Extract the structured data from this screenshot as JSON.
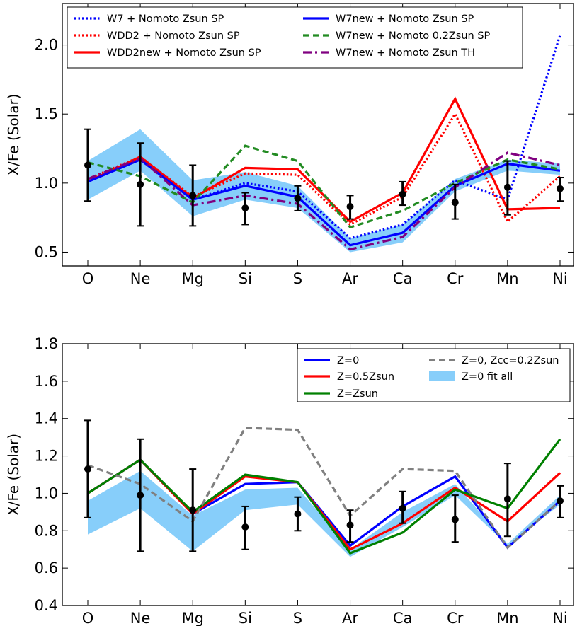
{
  "chart_data": [
    {
      "type": "line",
      "categories": [
        "O",
        "Ne",
        "Mg",
        "Si",
        "S",
        "Ar",
        "Ca",
        "Cr",
        "Mn",
        "Ni"
      ],
      "ylabel": "X/Fe (Solar)",
      "ylim": [
        0.4,
        2.3
      ],
      "yticks": [
        "0.5",
        "1.0",
        "1.5",
        "2.0"
      ],
      "grid": false,
      "legend_position": "top",
      "series": [
        {
          "name": "W7 + Nomoto Zsun SP",
          "style": "dotted",
          "color": "#0000ff",
          "values": [
            1.02,
            1.17,
            0.88,
            1.0,
            0.94,
            0.6,
            0.7,
            1.02,
            0.88,
            2.07
          ]
        },
        {
          "name": "WDD2 + Nomoto Zsun SP",
          "style": "dotted",
          "color": "#ff0000",
          "values": [
            1.03,
            1.19,
            0.9,
            1.07,
            1.06,
            0.7,
            0.9,
            1.5,
            0.72,
            1.05
          ]
        },
        {
          "name": "WDD2new + Nomoto Zsun SP",
          "style": "solid",
          "color": "#ff0000",
          "values": [
            1.01,
            1.19,
            0.89,
            1.11,
            1.1,
            0.72,
            0.93,
            1.61,
            0.81,
            0.82
          ]
        },
        {
          "name": "W7new + Nomoto Zsun SP",
          "style": "solid",
          "color": "#0000ff",
          "values": [
            1.01,
            1.17,
            0.88,
            0.98,
            0.9,
            0.55,
            0.64,
            0.98,
            1.14,
            1.09
          ]
        },
        {
          "name": "W7new + Nomoto 0.2Zsun SP",
          "style": "dashed",
          "color": "#228b22",
          "values": [
            1.15,
            1.05,
            0.86,
            1.27,
            1.16,
            0.68,
            0.8,
            1.0,
            1.17,
            1.1
          ]
        },
        {
          "name": "W7new + Nomoto Zsun TH",
          "style": "dashdot",
          "color": "#800080",
          "values": [
            1.03,
            1.18,
            0.84,
            0.91,
            0.85,
            0.52,
            0.61,
            0.97,
            1.22,
            1.13
          ]
        }
      ],
      "band": {
        "lower": [
          0.88,
          1.09,
          0.76,
          0.88,
          0.82,
          0.5,
          0.57,
          0.94,
          1.09,
          1.06
        ],
        "upper": [
          1.16,
          1.39,
          1.02,
          1.08,
          0.98,
          0.6,
          0.7,
          1.03,
          1.17,
          1.14
        ],
        "color": "#87cefa"
      },
      "observed": {
        "values": [
          1.13,
          0.99,
          0.91,
          0.82,
          0.89,
          0.83,
          0.92,
          0.86,
          0.97,
          0.96
        ],
        "err_low": [
          0.26,
          0.3,
          0.22,
          0.12,
          0.09,
          0.09,
          0.08,
          0.12,
          0.2,
          0.09
        ],
        "err_high": [
          0.26,
          0.3,
          0.22,
          0.11,
          0.09,
          0.08,
          0.09,
          0.13,
          0.19,
          0.08
        ]
      }
    },
    {
      "type": "line",
      "categories": [
        "O",
        "Ne",
        "Mg",
        "Si",
        "S",
        "Ar",
        "Ca",
        "Cr",
        "Mn",
        "Ni"
      ],
      "ylabel": "X/Fe (Solar)",
      "ylim": [
        0.4,
        1.8
      ],
      "yticks": [
        "0.4",
        "0.6",
        "0.8",
        "1.0",
        "1.2",
        "1.4",
        "1.6",
        "1.8"
      ],
      "grid": false,
      "legend_position": "top-right",
      "series": [
        {
          "name": "Z=0",
          "style": "solid",
          "color": "#0000ff",
          "values": [
            1.0,
            1.18,
            0.89,
            1.05,
            1.06,
            0.72,
            0.93,
            1.09,
            0.71,
            0.96
          ]
        },
        {
          "name": "Z=0.5Zsun",
          "style": "solid",
          "color": "#ff0000",
          "values": [
            1.0,
            1.18,
            0.89,
            1.09,
            1.06,
            0.7,
            0.84,
            1.03,
            0.85,
            1.11
          ]
        },
        {
          "name": "Z=Zsun",
          "style": "solid",
          "color": "#008000",
          "values": [
            1.0,
            1.18,
            0.9,
            1.1,
            1.06,
            0.68,
            0.79,
            1.02,
            0.92,
            1.29
          ]
        },
        {
          "name": "Z=0, Zcc=0.2Zsun",
          "style": "dashed",
          "color": "#808080",
          "values": [
            1.15,
            1.05,
            0.85,
            1.35,
            1.34,
            0.88,
            1.13,
            1.12,
            0.71,
            0.96
          ]
        }
      ],
      "band": {
        "name": "Z=0 fit all",
        "lower": [
          0.78,
          0.92,
          0.69,
          0.91,
          0.94,
          0.66,
          0.82,
          0.99,
          0.72,
          0.94
        ],
        "upper": [
          0.96,
          1.12,
          0.88,
          1.02,
          1.03,
          0.7,
          0.9,
          1.05,
          0.73,
          0.99
        ],
        "color": "#87cefa"
      },
      "observed": {
        "values": [
          1.13,
          0.99,
          0.91,
          0.82,
          0.89,
          0.83,
          0.92,
          0.86,
          0.97,
          0.96
        ],
        "err_low": [
          0.26,
          0.3,
          0.22,
          0.12,
          0.09,
          0.09,
          0.08,
          0.12,
          0.2,
          0.09
        ],
        "err_high": [
          0.26,
          0.3,
          0.22,
          0.11,
          0.09,
          0.08,
          0.09,
          0.13,
          0.19,
          0.08
        ]
      }
    }
  ]
}
